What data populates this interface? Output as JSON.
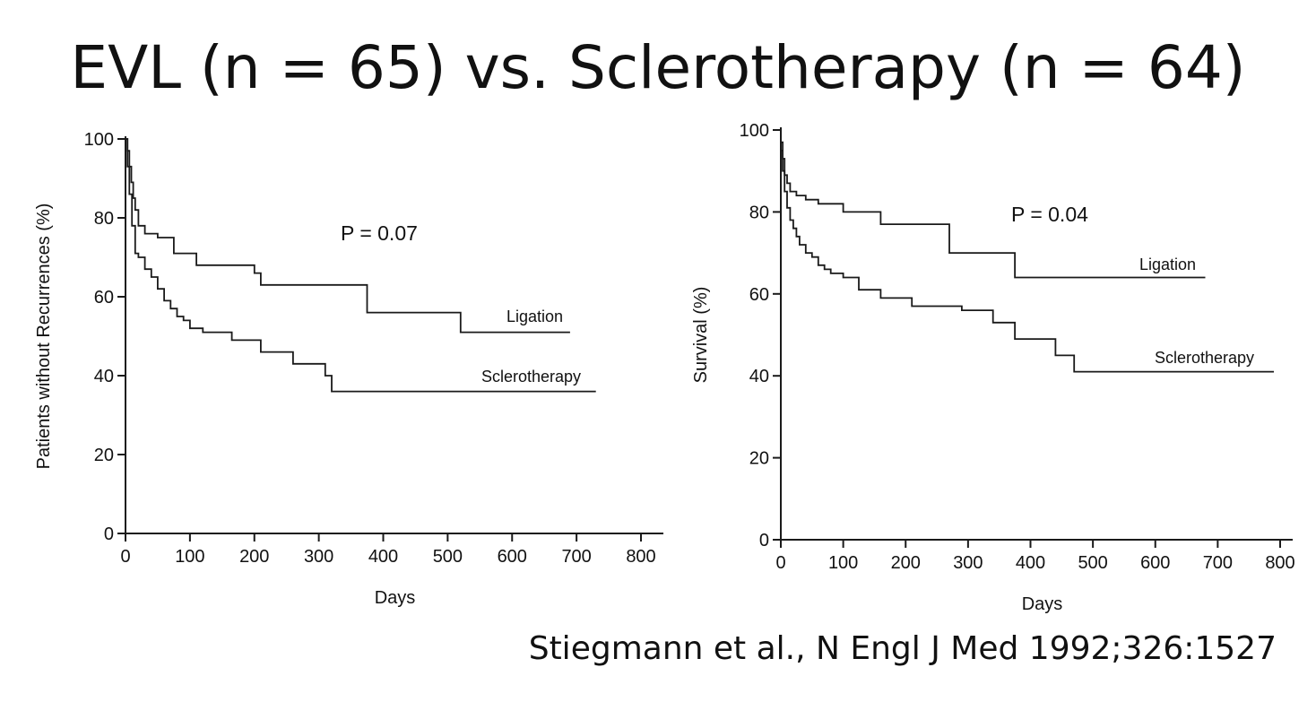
{
  "slide": {
    "title": "EVL (n = 65) vs. Sclerotherapy (n = 64)",
    "citation": "Stiegmann et al., N Engl J Med 1992;326:1527"
  },
  "chart_data": [
    {
      "id": "recurrence",
      "type": "line",
      "step": true,
      "title": "",
      "xlabel": "Days",
      "ylabel": "Patients without Recurrences (%)",
      "xlim": [
        0,
        800
      ],
      "ylim": [
        0,
        100
      ],
      "xticks": [
        0,
        100,
        200,
        300,
        400,
        500,
        600,
        700,
        800
      ],
      "yticks": [
        0,
        20,
        40,
        60,
        80,
        100
      ],
      "grid": false,
      "annotation": "P = 0.07",
      "series": [
        {
          "name": "Ligation",
          "x": [
            0,
            3,
            6,
            9,
            12,
            15,
            20,
            30,
            50,
            75,
            110,
            165,
            200,
            210,
            370,
            375,
            520,
            690
          ],
          "y": [
            100,
            97,
            93,
            89,
            85,
            82,
            78,
            76,
            75,
            71,
            68,
            68,
            66,
            63,
            63,
            56,
            51,
            51
          ]
        },
        {
          "name": "Sclerotherapy",
          "x": [
            0,
            3,
            6,
            10,
            15,
            20,
            30,
            40,
            50,
            60,
            70,
            80,
            90,
            100,
            120,
            165,
            210,
            260,
            310,
            320,
            730
          ],
          "y": [
            100,
            93,
            86,
            78,
            71,
            70,
            67,
            65,
            62,
            59,
            57,
            55,
            54,
            52,
            51,
            49,
            46,
            43,
            40,
            36,
            36
          ]
        }
      ]
    },
    {
      "id": "survival",
      "type": "line",
      "step": true,
      "title": "",
      "xlabel": "Days",
      "ylabel": "Survival (%)",
      "xlim": [
        0,
        800
      ],
      "ylim": [
        0,
        100
      ],
      "xticks": [
        0,
        100,
        200,
        300,
        400,
        500,
        600,
        700,
        800
      ],
      "yticks": [
        0,
        20,
        40,
        60,
        80,
        100
      ],
      "grid": false,
      "annotation": "P = 0.04",
      "series": [
        {
          "name": "Ligation",
          "x": [
            0,
            3,
            6,
            10,
            15,
            25,
            40,
            60,
            100,
            130,
            160,
            270,
            360,
            375,
            680
          ],
          "y": [
            97,
            93,
            89,
            87,
            85,
            84,
            83,
            82,
            80,
            80,
            77,
            70,
            70,
            64,
            64
          ]
        },
        {
          "name": "Sclerotherapy",
          "x": [
            0,
            3,
            6,
            10,
            15,
            20,
            25,
            30,
            40,
            50,
            60,
            70,
            80,
            100,
            125,
            160,
            210,
            290,
            340,
            375,
            440,
            470,
            790
          ],
          "y": [
            95,
            90,
            85,
            81,
            78,
            76,
            74,
            72,
            70,
            69,
            67,
            66,
            65,
            64,
            61,
            59,
            57,
            56,
            53,
            49,
            45,
            41,
            41
          ]
        }
      ]
    }
  ]
}
